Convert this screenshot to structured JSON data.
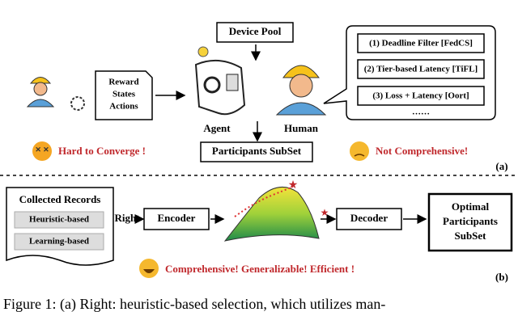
{
  "panel_a": {
    "device_pool": "Device Pool",
    "state_box": [
      "Reward",
      "States",
      "Actions"
    ],
    "agent": "Agent",
    "human": "Human",
    "participants_subset": "Participants SubSet",
    "methods": [
      "(1) Deadline Filter [FedCS]",
      "(2) Tier-based Latency [TiFL]",
      "(3) Loss + Latency [Oort]"
    ],
    "more": "……",
    "problem_left": "Hard to Converge !",
    "problem_right": "Not Comprehensive!",
    "label": "(a)"
  },
  "panel_b": {
    "records_title": "Collected Records",
    "records": [
      "Heuristic-based",
      "Learning-based"
    ],
    "right": "Right",
    "encoder": "Encoder",
    "decoder": "Decoder",
    "output": [
      "Optimal",
      "Participants",
      "SubSet"
    ],
    "benefit": "Comprehensive! Generalizable! Efficient !",
    "label": "(b)"
  },
  "caption": "Figure 1: (a) Right: heuristic-based selection, which utilizes man-"
}
